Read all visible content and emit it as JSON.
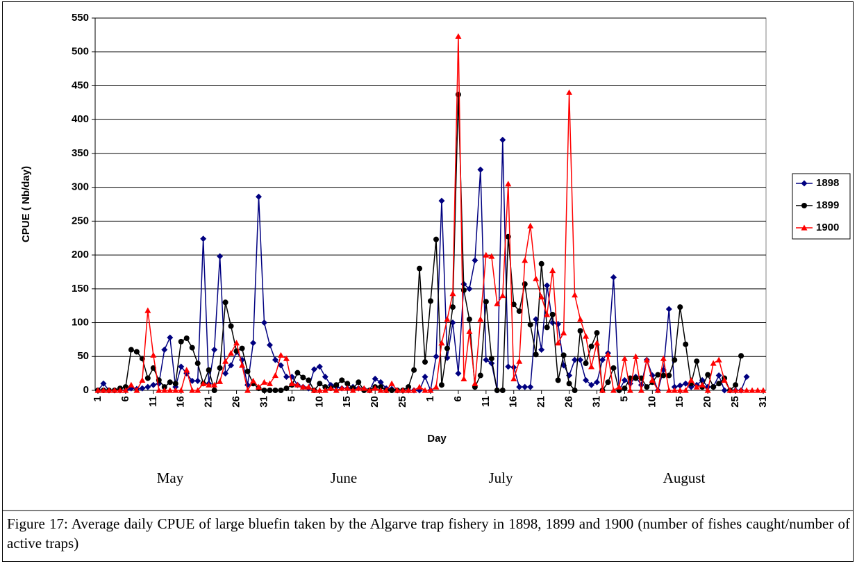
{
  "chart_data": {
    "type": "line",
    "y_label": "CPUE ( Nb/day)",
    "x_label": "Day",
    "annotations": [
      "May",
      "June",
      "July",
      "August"
    ],
    "caption": "Figure 17: Average daily CPUE of large bluefin taken by the Algarve trap fishery in 1898, 1899 and 1900 (number of fishes caught/number of active traps)",
    "categories": [
      "1",
      null,
      null,
      null,
      null,
      "6",
      null,
      null,
      null,
      null,
      "11",
      null,
      null,
      null,
      null,
      "16",
      null,
      null,
      null,
      null,
      "21",
      null,
      null,
      null,
      null,
      "26",
      null,
      null,
      null,
      null,
      "31",
      null,
      null,
      null,
      null,
      "5",
      null,
      null,
      null,
      null,
      "10",
      null,
      null,
      null,
      null,
      "15",
      null,
      null,
      null,
      null,
      "20",
      null,
      null,
      null,
      null,
      "25",
      null,
      null,
      null,
      null,
      "1",
      null,
      null,
      null,
      null,
      "6",
      null,
      null,
      null,
      null,
      "11",
      null,
      null,
      null,
      null,
      "16",
      null,
      null,
      null,
      null,
      "21",
      null,
      null,
      null,
      null,
      "26",
      null,
      null,
      null,
      null,
      "31",
      null,
      null,
      null,
      null,
      "5",
      null,
      null,
      null,
      null,
      "10",
      null,
      null,
      null,
      null,
      "15",
      null,
      null,
      null,
      null,
      "20",
      null,
      null,
      null,
      null,
      "25",
      null,
      null,
      null,
      null,
      "31"
    ],
    "series": [
      {
        "name": "1898",
        "color": "#000080",
        "marker": "diamond",
        "values": [
          0,
          10,
          0,
          0,
          0,
          0,
          3,
          2,
          3,
          5,
          8,
          10,
          60,
          78,
          5,
          35,
          25,
          14,
          14,
          224,
          10,
          60,
          198,
          25,
          37,
          57,
          45,
          8,
          70,
          286,
          100,
          67,
          45,
          37,
          20,
          20,
          8,
          5,
          3,
          31,
          35,
          20,
          8,
          5,
          3,
          3,
          5,
          3,
          2,
          0,
          17,
          12,
          3,
          2,
          0,
          0,
          0,
          0,
          0,
          20,
          0,
          50,
          280,
          48,
          100,
          25,
          157,
          150,
          192,
          326,
          45,
          40,
          0,
          370,
          35,
          34,
          5,
          5,
          5,
          105,
          60,
          155,
          100,
          98,
          37,
          22,
          45,
          45,
          15,
          8,
          12,
          45,
          55,
          167,
          0,
          15,
          10,
          20,
          8,
          45,
          22,
          0,
          30,
          120,
          5,
          7,
          10,
          5,
          8,
          15,
          5,
          5,
          22,
          0,
          0,
          0,
          0,
          20,
          null,
          null,
          null
        ]
      },
      {
        "name": "1899",
        "color": "#000000",
        "marker": "circle",
        "values": [
          0,
          0,
          0,
          0,
          3,
          5,
          60,
          57,
          47,
          18,
          33,
          15,
          5,
          12,
          10,
          72,
          77,
          63,
          40,
          10,
          30,
          0,
          33,
          130,
          95,
          58,
          62,
          28,
          10,
          3,
          0,
          0,
          0,
          0,
          3,
          8,
          26,
          19,
          15,
          0,
          10,
          5,
          3,
          8,
          15,
          10,
          3,
          12,
          0,
          0,
          5,
          5,
          0,
          0,
          0,
          0,
          5,
          30,
          180,
          42,
          132,
          223,
          8,
          62,
          123,
          437,
          148,
          105,
          5,
          22,
          131,
          47,
          0,
          0,
          227,
          127,
          117,
          157,
          97,
          53,
          187,
          93,
          112,
          15,
          52,
          10,
          0,
          88,
          40,
          65,
          85,
          0,
          12,
          33,
          0,
          3,
          18,
          18,
          18,
          5,
          12,
          23,
          22,
          22,
          45,
          123,
          68,
          10,
          43,
          5,
          23,
          5,
          10,
          18,
          0,
          8,
          51,
          null,
          null,
          null,
          null
        ]
      },
      {
        "name": "1900",
        "color": "#ff0000",
        "marker": "triangle",
        "values": [
          0,
          0,
          0,
          0,
          0,
          0,
          8,
          0,
          15,
          118,
          52,
          0,
          0,
          0,
          0,
          0,
          30,
          0,
          0,
          10,
          8,
          8,
          13,
          43,
          55,
          70,
          37,
          0,
          14,
          5,
          12,
          10,
          22,
          52,
          47,
          10,
          8,
          5,
          5,
          0,
          0,
          0,
          3,
          0,
          3,
          3,
          0,
          3,
          3,
          0,
          3,
          0,
          0,
          10,
          0,
          0,
          0,
          0,
          5,
          0,
          0,
          5,
          70,
          105,
          143,
          523,
          17,
          87,
          10,
          105,
          200,
          198,
          128,
          140,
          305,
          17,
          43,
          192,
          243,
          165,
          138,
          112,
          177,
          70,
          85,
          440,
          141,
          105,
          80,
          35,
          70,
          0,
          53,
          0,
          5,
          47,
          0,
          50,
          0,
          45,
          15,
          0,
          47,
          0,
          0,
          0,
          0,
          15,
          5,
          8,
          0,
          40,
          45,
          15,
          0,
          0,
          0,
          0,
          0,
          0,
          0
        ]
      }
    ],
    "ylim": [
      0,
      550
    ],
    "yticks": [
      0,
      50,
      100,
      150,
      200,
      250,
      300,
      350,
      400,
      450,
      500,
      550
    ],
    "grid": true,
    "legend": "right"
  }
}
